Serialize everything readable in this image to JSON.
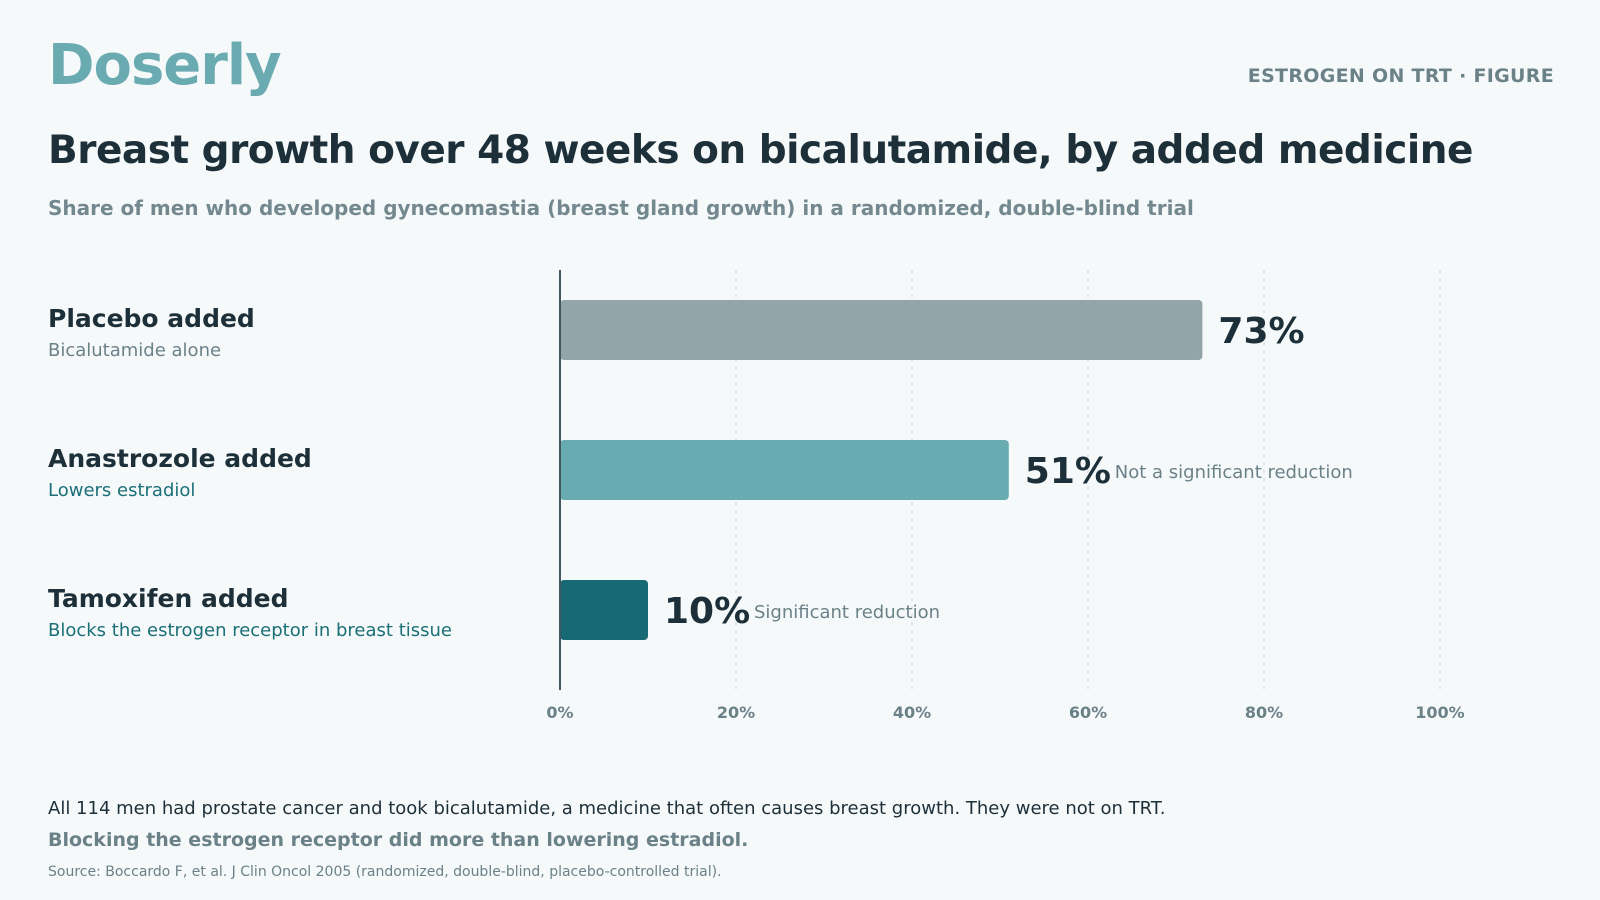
{
  "brand": {
    "logo_text": "Doserly"
  },
  "header": {
    "figure_tag": "ESTROGEN ON TRT · FIGURE",
    "title": "Breast growth over 48 weeks on bicalutamide, by added medicine",
    "subtitle": "Share of men who developed gynecomastia (breast gland growth) in a randomized, double-blind trial"
  },
  "colors": {
    "placebo": "#93a5a9",
    "anastrozole": "#68abb1",
    "tamoxifen": "#176a74",
    "desc_muted": "#6b8188",
    "desc_accent": "#1b6f77",
    "axis": "#44565d",
    "grid": "#d6e0e3"
  },
  "chart_data": {
    "type": "bar",
    "orientation": "horizontal",
    "categories": [
      "Placebo added",
      "Anastrozole added",
      "Tamoxifen added"
    ],
    "category_descriptions": [
      "Bicalutamide alone",
      "Lowers estradiol",
      "Blocks the estrogen receptor in breast tissue"
    ],
    "values": [
      73,
      51,
      10
    ],
    "value_labels": [
      "73%",
      "51%",
      "10%"
    ],
    "annotations": [
      "",
      "Not a significant reduction",
      "Significant reduction"
    ],
    "xlim": [
      0,
      100
    ],
    "x_ticks": [
      0,
      20,
      40,
      60,
      80,
      100
    ],
    "x_tick_labels": [
      "0%",
      "20%",
      "40%",
      "60%",
      "80%",
      "100%"
    ],
    "grid": "vertical dotted",
    "unit": "%"
  },
  "footer": {
    "line1": "All 114 men had prostate cancer and took bicalutamide, a medicine that often causes breast growth. They were not on TRT.",
    "line2": "Blocking the estrogen receptor did more than lowering estradiol.",
    "source": "Source: Boccardo F, et al. J Clin Oncol 2005 (randomized, double-blind, placebo-controlled trial)."
  }
}
